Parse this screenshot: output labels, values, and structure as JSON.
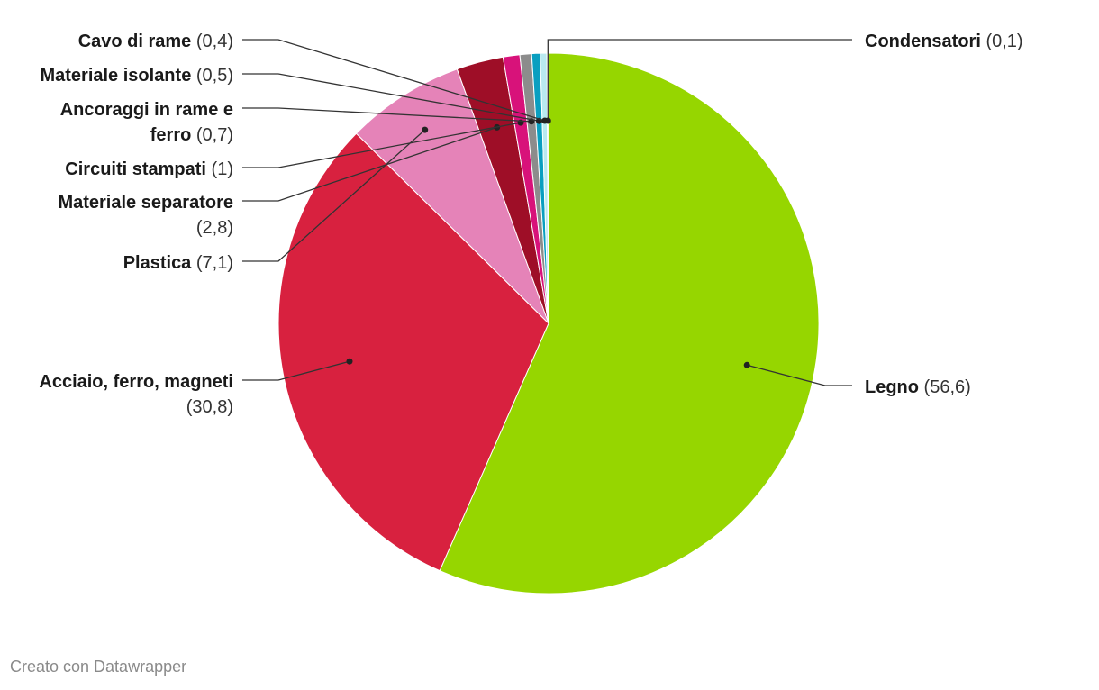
{
  "chart_data": {
    "type": "pie",
    "slices": [
      {
        "label": "Legno",
        "value": 56.6,
        "display": "(56,6)",
        "color": "#96d600"
      },
      {
        "label": "Acciaio, ferro, magneti",
        "value": 30.8,
        "display": "(30,8)",
        "color": "#d8213f"
      },
      {
        "label": "Plastica",
        "value": 7.1,
        "display": "(7,1)",
        "color": "#e583b8"
      },
      {
        "label": "Materiale separatore",
        "value": 2.8,
        "display": "(2,8)",
        "color": "#9e0e27"
      },
      {
        "label": "Circuiti stampati",
        "value": 1,
        "display": "(1)",
        "color": "#d8127a"
      },
      {
        "label": "Ancoraggi in rame e ferro",
        "value": 0.7,
        "display": "(0,7)",
        "color": "#8c8c8c"
      },
      {
        "label": "Materiale isolante",
        "value": 0.5,
        "display": "(0,5)",
        "color": "#0a9fc0"
      },
      {
        "label": "Cavo di rame",
        "value": 0.4,
        "display": "(0,4)",
        "color": "#b9e9f0"
      },
      {
        "label": "Condensatori",
        "value": 0.1,
        "display": "(0,1)",
        "color": "#e4f1b4"
      }
    ]
  },
  "footer": {
    "credit": "Creato con Datawrapper"
  }
}
